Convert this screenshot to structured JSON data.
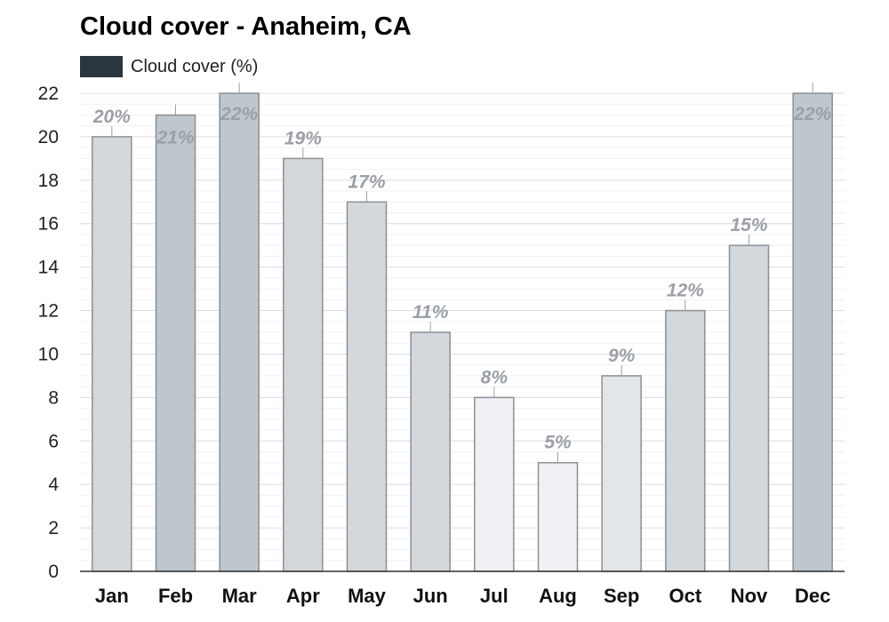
{
  "chart_data": {
    "type": "bar",
    "title": "Cloud cover - Anaheim, CA",
    "legend": {
      "label": "Cloud cover (%)",
      "color": "#2a3540",
      "placement": "top-left"
    },
    "categories": [
      "Jan",
      "Feb",
      "Mar",
      "Apr",
      "May",
      "Jun",
      "Jul",
      "Aug",
      "Sep",
      "Oct",
      "Nov",
      "Dec"
    ],
    "series": [
      {
        "name": "Cloud cover (%)",
        "values": [
          20,
          21,
          22,
          19,
          17,
          11,
          8,
          5,
          9,
          12,
          15,
          22
        ]
      }
    ],
    "data_labels": [
      "20%",
      "21%",
      "22%",
      "19%",
      "17%",
      "11%",
      "8%",
      "5%",
      "9%",
      "12%",
      "15%",
      "22%"
    ],
    "bar_colors": [
      "#d3d8dc",
      "#bfc7cc",
      "#bfc7cc",
      "#d3d8dc",
      "#d3d8dc",
      "#d3d8dc",
      "#eff0f3",
      "#eff0f3",
      "#e3e6e9",
      "#d3d8dc",
      "#d3d8dc",
      "#bfc7cc"
    ],
    "bar_stroke": "#8a9095",
    "ylim": [
      0,
      22
    ],
    "yticks": [
      0,
      2,
      4,
      6,
      8,
      10,
      12,
      14,
      16,
      18,
      20,
      22
    ],
    "xlabel": "",
    "ylabel": "",
    "grid": true
  }
}
